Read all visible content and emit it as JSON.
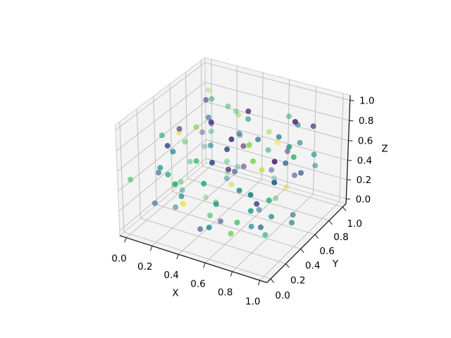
{
  "figure": {
    "background": "#ffffff"
  },
  "chart_data": {
    "type": "scatter",
    "subtype": "scatter3d",
    "title": "",
    "xlabel": "X",
    "ylabel": "Y",
    "zlabel": "Z",
    "xlim": [
      -0.05,
      1.05
    ],
    "ylim": [
      -0.05,
      1.05
    ],
    "zlim": [
      -0.05,
      1.05
    ],
    "ticks": {
      "values": [
        0.0,
        0.2,
        0.4,
        0.6,
        0.8,
        1.0
      ],
      "labels": [
        "0.0",
        "0.2",
        "0.4",
        "0.6",
        "0.8",
        "1.0"
      ]
    },
    "grid": true,
    "legend": false,
    "view": {
      "elev": 30,
      "azim": -60,
      "dist": 10,
      "box_aspect": [
        1,
        1,
        0.75
      ]
    },
    "colors": {
      "pane": "#f3f3f3",
      "pane_edge": "#cfcfcf",
      "grid": "#c0c0c0",
      "axis_line": "#1a1a1a",
      "tick_label": "#000000"
    },
    "colormap": {
      "name": "viridis",
      "stops": [
        [
          0.0,
          "#440154"
        ],
        [
          0.125,
          "#46327e"
        ],
        [
          0.25,
          "#365c8d"
        ],
        [
          0.375,
          "#277f8e"
        ],
        [
          0.5,
          "#21918c"
        ],
        [
          0.625,
          "#22a884"
        ],
        [
          0.75,
          "#44bf70"
        ],
        [
          0.875,
          "#7ad151"
        ],
        [
          1.0,
          "#fde725"
        ]
      ]
    },
    "marker": {
      "radius_px": 4,
      "alpha_near": 1.0,
      "alpha_far": 0.32
    },
    "points": [
      [
        0.55,
        0.87,
        0.62,
        0.91
      ],
      [
        0.13,
        0.42,
        0.78,
        0.12
      ],
      [
        0.78,
        0.22,
        0.35,
        0.55
      ],
      [
        0.34,
        0.69,
        0.91,
        0.78
      ],
      [
        0.91,
        0.55,
        0.13,
        0.33
      ],
      [
        0.22,
        0.13,
        0.55,
        0.64
      ],
      [
        0.67,
        0.91,
        0.44,
        0.08
      ],
      [
        0.45,
        0.34,
        0.22,
        0.85
      ],
      [
        0.83,
        0.78,
        0.67,
        0.47
      ],
      [
        0.09,
        0.61,
        0.31,
        0.7
      ],
      [
        0.58,
        0.08,
        0.84,
        0.25
      ],
      [
        0.31,
        0.87,
        0.17,
        0.58
      ],
      [
        0.73,
        0.45,
        0.58,
        0.95
      ],
      [
        0.17,
        0.29,
        0.09,
        0.41
      ],
      [
        0.95,
        0.73,
        0.91,
        0.18
      ],
      [
        0.41,
        0.17,
        0.73,
        0.74
      ],
      [
        0.64,
        0.58,
        0.05,
        0.29
      ],
      [
        0.27,
        0.95,
        0.64,
        0.88
      ],
      [
        0.88,
        0.31,
        0.27,
        0.52
      ],
      [
        0.05,
        0.84,
        0.45,
        0.07
      ],
      [
        0.52,
        0.64,
        0.88,
        0.62
      ],
      [
        0.38,
        0.05,
        0.38,
        0.98
      ],
      [
        0.76,
        0.88,
        0.76,
        0.36
      ],
      [
        0.11,
        0.52,
        0.58,
        0.81
      ],
      [
        0.61,
        0.27,
        0.95,
        0.15
      ],
      [
        0.29,
        0.76,
        0.29,
        0.68
      ],
      [
        0.84,
        0.11,
        0.61,
        0.44
      ],
      [
        0.47,
        0.47,
        0.47,
        0.03
      ],
      [
        0.7,
        0.7,
        0.11,
        0.77
      ],
      [
        0.02,
        0.38,
        0.7,
        0.59
      ],
      [
        0.93,
        0.61,
        0.52,
        0.22
      ],
      [
        0.36,
        0.93,
        0.36,
        0.93
      ],
      [
        0.59,
        0.02,
        0.25,
        0.49
      ],
      [
        0.25,
        0.59,
        0.83,
        0.31
      ],
      [
        0.81,
        0.36,
        0.02,
        0.66
      ],
      [
        0.14,
        0.81,
        0.59,
        0.11
      ],
      [
        0.68,
        0.14,
        0.14,
        0.84
      ],
      [
        0.43,
        0.68,
        0.68,
        0.39
      ],
      [
        0.97,
        0.43,
        0.81,
        0.72
      ],
      [
        0.07,
        0.25,
        0.43,
        0.26
      ],
      [
        0.54,
        0.97,
        0.07,
        0.57
      ],
      [
        0.32,
        0.32,
        0.93,
        0.9
      ],
      [
        0.79,
        0.79,
        0.32,
        0.14
      ],
      [
        0.2,
        0.07,
        0.65,
        0.61
      ],
      [
        0.65,
        0.54,
        0.79,
        0.35
      ],
      [
        0.49,
        0.2,
        0.2,
        0.79
      ],
      [
        0.86,
        0.65,
        0.97,
        0.05
      ],
      [
        0.1,
        0.49,
        0.1,
        0.46
      ],
      [
        0.62,
        0.86,
        0.54,
        0.99
      ],
      [
        0.24,
        0.1,
        0.86,
        0.2
      ],
      [
        0.9,
        0.24,
        0.49,
        0.69
      ],
      [
        0.37,
        0.62,
        0.24,
        0.42
      ],
      [
        0.71,
        0.37,
        0.71,
        0.87
      ],
      [
        0.16,
        0.71,
        0.9,
        0.1
      ],
      [
        0.56,
        0.16,
        0.37,
        0.53
      ],
      [
        0.28,
        0.9,
        0.71,
        0.75
      ],
      [
        0.82,
        0.28,
        0.16,
        0.28
      ],
      [
        0.04,
        0.56,
        0.62,
        0.96
      ],
      [
        0.6,
        0.82,
        0.28,
        0.17
      ],
      [
        0.33,
        0.04,
        0.56,
        0.63
      ],
      [
        0.77,
        0.6,
        0.82,
        0.38
      ],
      [
        0.19,
        0.33,
        0.33,
        0.82
      ],
      [
        0.94,
        0.77,
        0.6,
        0.5
      ],
      [
        0.42,
        0.19,
        0.04,
        0.24
      ],
      [
        0.66,
        0.94,
        0.77,
        0.67
      ],
      [
        0.08,
        0.42,
        0.19,
        0.92
      ],
      [
        0.51,
        0.66,
        0.94,
        0.02
      ],
      [
        0.35,
        0.08,
        0.42,
        0.56
      ],
      [
        0.87,
        0.51,
        0.66,
        0.3
      ],
      [
        0.23,
        0.87,
        0.08,
        0.73
      ],
      [
        0.69,
        0.23,
        0.51,
        0.45
      ],
      [
        0.46,
        0.69,
        0.35,
        0.09
      ],
      [
        0.92,
        0.46,
        0.87,
        0.6
      ],
      [
        0.12,
        0.12,
        0.23,
        0.34
      ],
      [
        0.57,
        0.57,
        0.69,
        0.86
      ],
      [
        0.3,
        0.92,
        0.46,
        0.19
      ],
      [
        0.74,
        0.3,
        0.12,
        0.51
      ],
      [
        0.18,
        0.74,
        0.57,
        0.71
      ],
      [
        0.63,
        0.18,
        0.92,
        0.27
      ],
      [
        0.4,
        0.63,
        0.18,
        0.94
      ],
      [
        0.85,
        0.4,
        0.74,
        0.06
      ],
      [
        0.06,
        0.85,
        0.3,
        0.43
      ],
      [
        0.53,
        0.06,
        0.63,
        0.65
      ],
      [
        0.26,
        0.53,
        0.06,
        0.83
      ],
      [
        0.8,
        0.26,
        0.4,
        0.16
      ],
      [
        0.15,
        0.8,
        0.85,
        0.54
      ],
      [
        0.72,
        0.15,
        0.26,
        0.76
      ],
      [
        0.44,
        0.72,
        0.53,
        0.01
      ],
      [
        0.96,
        0.44,
        0.15,
        0.4
      ],
      [
        0.03,
        0.96,
        0.8,
        0.89
      ],
      [
        0.5,
        0.5,
        0.44,
        0.23
      ],
      [
        0.21,
        0.21,
        0.72,
        0.48
      ],
      [
        0.75,
        0.75,
        0.21,
        0.97
      ],
      [
        0.39,
        0.39,
        0.96,
        0.13
      ],
      [
        0.89,
        0.89,
        0.39,
        0.37
      ],
      [
        0.01,
        0.01,
        0.5,
        0.8
      ],
      [
        0.48,
        0.35,
        0.03,
        0.21
      ],
      [
        0.98,
        0.16,
        0.75,
        0.32
      ],
      [
        0.59,
        0.79,
        0.5,
        0.58
      ],
      [
        0.33,
        0.48,
        0.65,
        0.44
      ]
    ]
  }
}
